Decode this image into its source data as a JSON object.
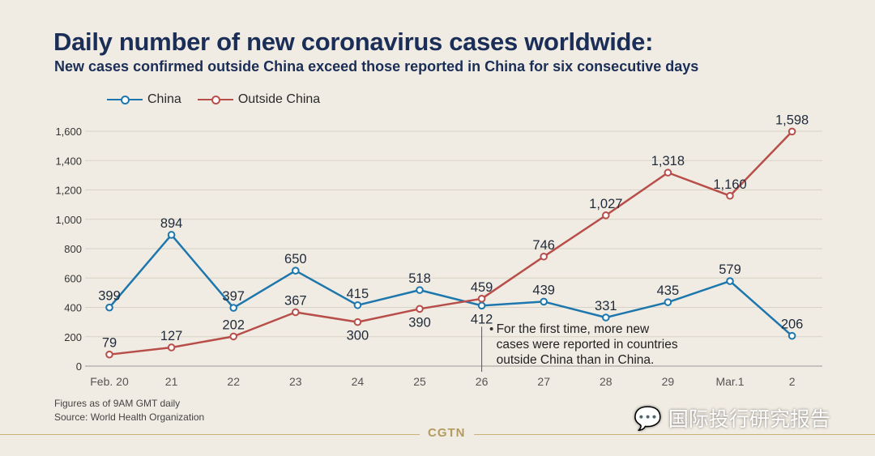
{
  "title": "Daily number of new coronavirus cases worldwide:",
  "subtitle": "New cases confirmed outside China exceed those reported in China for six consecutive days",
  "footnote": [
    "Figures as of 9AM GMT daily",
    "Source: World Health Organization"
  ],
  "logo": "CGTN",
  "watermark": "国际投行研究报告",
  "colors": {
    "china": "#1d77ad",
    "outside": "#b84e4a",
    "title": "#1b2e57"
  },
  "chart_data": {
    "type": "line",
    "categories": [
      "Feb. 20",
      "21",
      "22",
      "23",
      "24",
      "25",
      "26",
      "27",
      "28",
      "29",
      "Mar.1",
      "2"
    ],
    "ylim": [
      0,
      1600
    ],
    "yticks": [
      "0",
      "200",
      "400",
      "600",
      "800",
      "1,000",
      "1,200",
      "1,400",
      "1,600"
    ],
    "grid": true,
    "legend_position": "top-left",
    "series": [
      {
        "name": "China",
        "values": [
          399,
          894,
          397,
          650,
          415,
          518,
          412,
          439,
          331,
          435,
          579,
          206
        ],
        "labels": [
          "399",
          "894",
          "397",
          "650",
          "415",
          "518",
          "412",
          "439",
          "331",
          "435",
          "579",
          "206"
        ]
      },
      {
        "name": "Outside China",
        "values": [
          79,
          127,
          202,
          367,
          300,
          390,
          459,
          746,
          1027,
          1318,
          1160,
          1598
        ],
        "labels": [
          "79",
          "127",
          "202",
          "367",
          "300",
          "390",
          "459",
          "746",
          "1,027",
          "1,318",
          "1,160",
          "1,598"
        ]
      }
    ],
    "annotation": {
      "category": "26",
      "lines": [
        "For the first time, more new",
        "cases were reported in countries",
        "outside China than in China."
      ]
    }
  }
}
